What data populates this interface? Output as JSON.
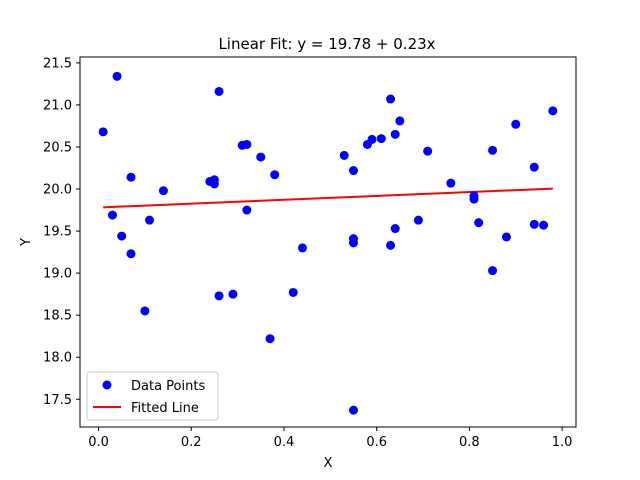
{
  "chart_data": {
    "type": "scatter",
    "title": "Linear Fit: y = 19.78 + 0.23x",
    "xlabel": "X",
    "ylabel": "Y",
    "xlim": [
      -0.04,
      1.03
    ],
    "ylim": [
      17.17,
      21.57
    ],
    "xticks": [
      0.0,
      0.2,
      0.4,
      0.6,
      0.8,
      1.0
    ],
    "xtick_labels": [
      "0.0",
      "0.2",
      "0.4",
      "0.6",
      "0.8",
      "1.0"
    ],
    "yticks": [
      17.5,
      18.0,
      18.5,
      19.0,
      19.5,
      20.0,
      20.5,
      21.0,
      21.5
    ],
    "ytick_labels": [
      "17.5",
      "18.0",
      "18.5",
      "19.0",
      "19.5",
      "20.0",
      "20.5",
      "21.0",
      "21.5"
    ],
    "grid": false,
    "legend_position": "bottom-left",
    "series": [
      {
        "name": "Data Points",
        "kind": "scatter",
        "color": "#0000ff",
        "points": [
          [
            0.01,
            20.68
          ],
          [
            0.03,
            19.69
          ],
          [
            0.04,
            21.34
          ],
          [
            0.05,
            19.44
          ],
          [
            0.07,
            19.23
          ],
          [
            0.07,
            20.14
          ],
          [
            0.1,
            18.55
          ],
          [
            0.11,
            19.63
          ],
          [
            0.14,
            19.98
          ],
          [
            0.24,
            20.09
          ],
          [
            0.25,
            20.11
          ],
          [
            0.25,
            20.06
          ],
          [
            0.26,
            18.73
          ],
          [
            0.26,
            21.16
          ],
          [
            0.29,
            18.75
          ],
          [
            0.31,
            20.52
          ],
          [
            0.32,
            20.53
          ],
          [
            0.32,
            19.75
          ],
          [
            0.35,
            20.38
          ],
          [
            0.37,
            18.22
          ],
          [
            0.38,
            20.17
          ],
          [
            0.42,
            18.77
          ],
          [
            0.44,
            19.3
          ],
          [
            0.53,
            20.4
          ],
          [
            0.55,
            20.22
          ],
          [
            0.55,
            19.41
          ],
          [
            0.55,
            19.36
          ],
          [
            0.55,
            17.37
          ],
          [
            0.58,
            20.53
          ],
          [
            0.59,
            20.59
          ],
          [
            0.61,
            20.6
          ],
          [
            0.63,
            19.33
          ],
          [
            0.63,
            21.07
          ],
          [
            0.64,
            19.53
          ],
          [
            0.64,
            20.65
          ],
          [
            0.65,
            20.81
          ],
          [
            0.69,
            19.63
          ],
          [
            0.71,
            20.45
          ],
          [
            0.76,
            20.07
          ],
          [
            0.81,
            19.88
          ],
          [
            0.81,
            19.92
          ],
          [
            0.82,
            19.6
          ],
          [
            0.85,
            20.46
          ],
          [
            0.85,
            19.03
          ],
          [
            0.88,
            19.43
          ],
          [
            0.9,
            20.77
          ],
          [
            0.94,
            20.26
          ],
          [
            0.94,
            19.58
          ],
          [
            0.96,
            19.57
          ],
          [
            0.98,
            20.93
          ]
        ]
      },
      {
        "name": "Fitted Line",
        "kind": "line",
        "color": "#ff0000",
        "intercept": 19.78,
        "slope": 0.23,
        "x": [
          0.01,
          0.98
        ]
      }
    ]
  }
}
